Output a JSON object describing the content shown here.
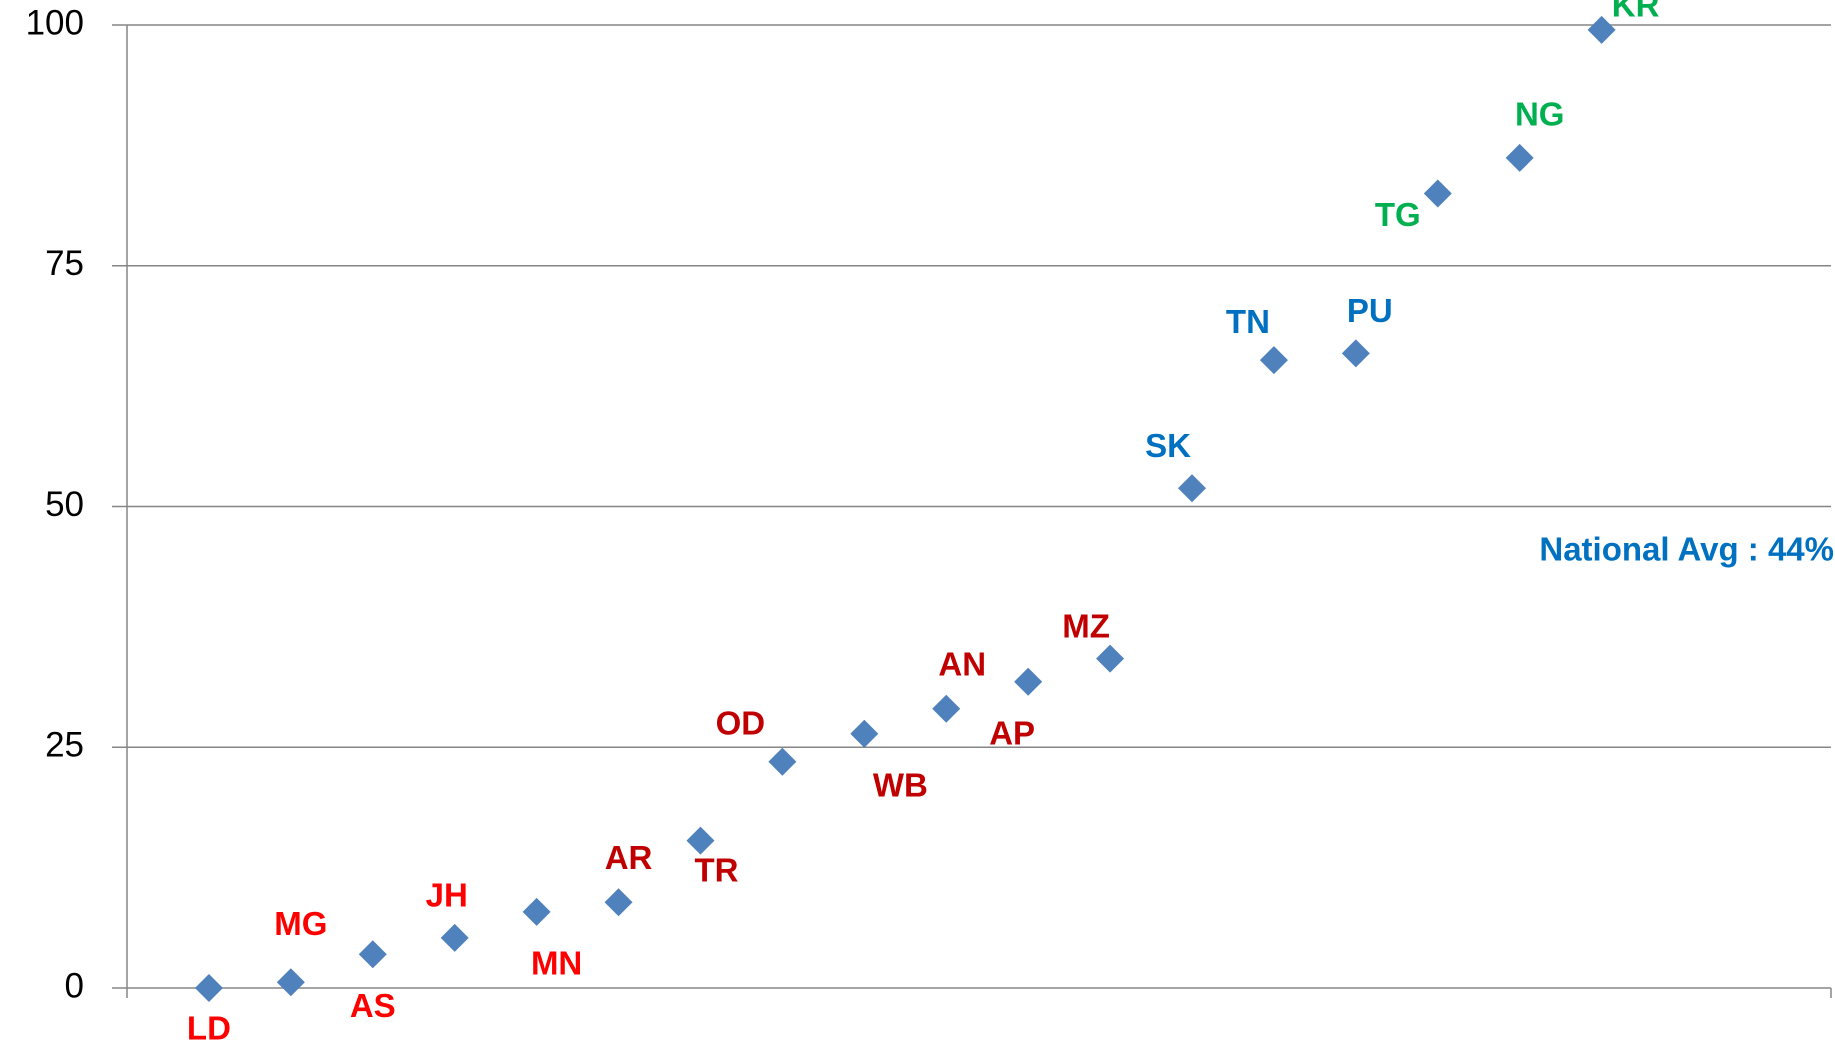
{
  "chart_data": {
    "type": "scatter",
    "categories": [
      "LD",
      "MG",
      "AS",
      "JH",
      "MN",
      "AR",
      "TR",
      "OD",
      "WB",
      "AN",
      "AP",
      "MZ",
      "SK",
      "TN",
      "PU",
      "TG",
      "NG",
      "KR"
    ],
    "values": [
      0,
      0.6,
      3.5,
      5.2,
      7.9,
      8.9,
      15.3,
      23.5,
      26.4,
      29.0,
      31.8,
      34.2,
      51.9,
      65.2,
      65.9,
      82.5,
      86.2,
      99.5
    ],
    "color": "#4f81bd",
    "label_colors": [
      "#ff0000",
      "#ff0000",
      "#ff0000",
      "#ff0000",
      "#ff0000",
      "#c00000",
      "#c00000",
      "#c00000",
      "#c00000",
      "#c00000",
      "#c00000",
      "#c00000",
      "#0070c0",
      "#0070c0",
      "#0070c0",
      "#00b050",
      "#00b050",
      "#00b050"
    ],
    "annotation": "National Avg : 44%",
    "annotation_color": "#0070c0",
    "ylim": [
      0,
      100
    ],
    "yticks": [
      0,
      25,
      50,
      75,
      100
    ],
    "grid": true
  }
}
